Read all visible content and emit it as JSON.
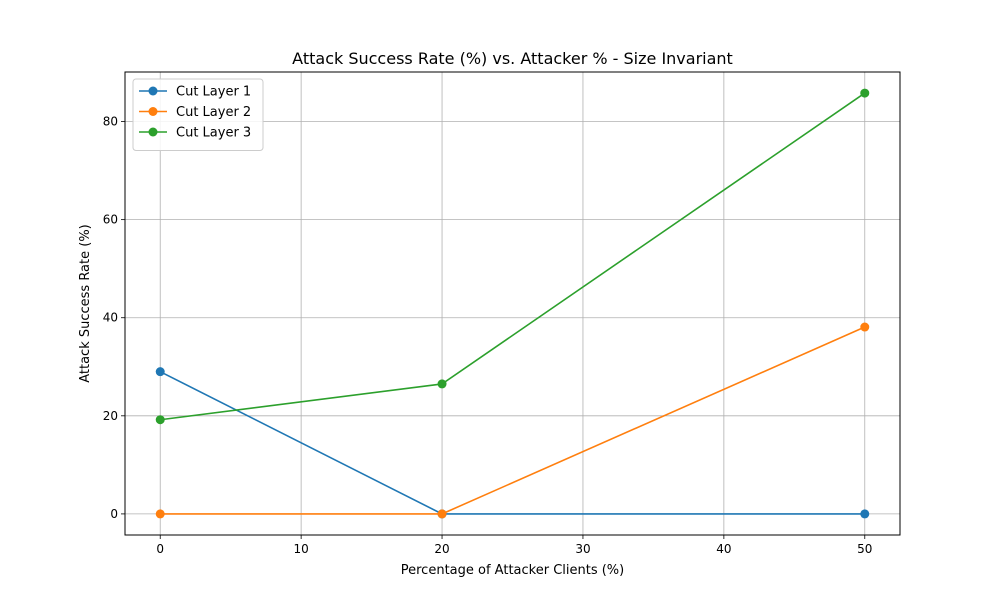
{
  "chart_data": {
    "type": "line",
    "title": "Attack Success Rate (%) vs. Attacker % - Size Invariant",
    "xlabel": "Percentage of Attacker Clients (%)",
    "ylabel": "Attack Success Rate (%)",
    "x": [
      0,
      20,
      50
    ],
    "xlim": [
      -2.5,
      52.5
    ],
    "ylim": [
      -4.3,
      90.1
    ],
    "xticks": [
      0,
      10,
      20,
      30,
      40,
      50
    ],
    "yticks": [
      0,
      20,
      40,
      60,
      80
    ],
    "grid": true,
    "legend_position": "upper-left",
    "marker": "circle",
    "series": [
      {
        "name": "Cut Layer 1",
        "color": "#1f77b4",
        "values": [
          29.0,
          0.0,
          0.0
        ]
      },
      {
        "name": "Cut Layer 2",
        "color": "#ff7f0e",
        "values": [
          0.0,
          0.0,
          38.1
        ]
      },
      {
        "name": "Cut Layer 3",
        "color": "#2ca02c",
        "values": [
          19.2,
          26.5,
          85.8
        ]
      }
    ]
  }
}
